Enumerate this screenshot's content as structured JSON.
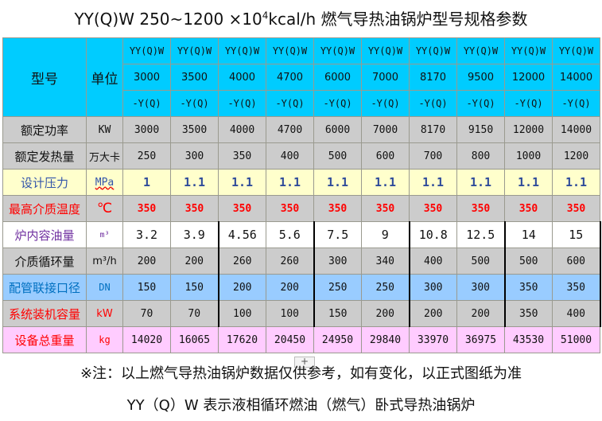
{
  "title": {
    "prefix": "YY(Q)W 250~1200  ×10",
    "sup": "4",
    "suffix": "kcal/h 燃气导热油锅炉型号规格参数"
  },
  "header": {
    "model_label": "型号",
    "unit_label": "单位",
    "line1": "YY(Q)W",
    "line3": "-Y(Q)",
    "models": [
      "3000",
      "3500",
      "4000",
      "4700",
      "6000",
      "7000",
      "8170",
      "9500",
      "12000",
      "14000"
    ]
  },
  "rows": [
    {
      "label": "额定功率",
      "unit": "KW",
      "values": [
        "3000",
        "3500",
        "4000",
        "4700",
        "6000",
        "7000",
        "8170",
        "9150",
        "12000",
        "14000"
      ]
    },
    {
      "label": "额定发热量",
      "unit": "万大卡",
      "values": [
        "250",
        "300",
        "350",
        "400",
        "500",
        "600",
        "700",
        "800",
        "1000",
        "1200"
      ]
    },
    {
      "label": "设计压力",
      "unit": "MPa",
      "values": [
        "1",
        "1.1",
        "1.1",
        "1.1",
        "1.1",
        "1.1",
        "1.1",
        "1.1",
        "1.1",
        "1.1"
      ]
    },
    {
      "label": "最高介质温度",
      "unit": "℃",
      "values": [
        "350",
        "350",
        "350",
        "350",
        "350",
        "350",
        "350",
        "350",
        "350",
        "350"
      ]
    },
    {
      "label": "炉内容油量",
      "unit": "m³",
      "values": [
        "3.2",
        "3.9",
        "4.56",
        "5.6",
        "7.5",
        "9",
        "10.8",
        "12.5",
        "14",
        "15"
      ]
    },
    {
      "label": "介质循环量",
      "unit": "m³/h",
      "values": [
        "200",
        "200",
        "260",
        "260",
        "300",
        "340",
        "400",
        "500",
        "500",
        "600"
      ]
    },
    {
      "label": "配管联接口径",
      "unit": "DN",
      "values": [
        "150",
        "150",
        "200",
        "200",
        "250",
        "250",
        "300",
        "300",
        "350",
        "350"
      ]
    },
    {
      "label": "系统装机容量",
      "unit": "kW",
      "values": [
        "70",
        "70",
        "100",
        "100",
        "150",
        "200",
        "200",
        "200",
        "350",
        "400"
      ]
    },
    {
      "label": "设备总重量",
      "unit": "kg",
      "values": [
        "14020",
        "16065",
        "17620",
        "20450",
        "24950",
        "29840",
        "33970",
        "36975",
        "43530",
        "51000"
      ]
    }
  ],
  "colors": {
    "header": "#00ccff",
    "gray": "#cccccc",
    "pressure": "#ffffcc",
    "pipe": "#99ccff",
    "weight": "#ffccff",
    "red": "#ff0000"
  },
  "footer": {
    "note": "※注：以上燃气导热油锅炉数据仅供参考，如有变化，以正式图纸为准",
    "desc": "YY（Q）W 表示液相循环燃油（燃气）卧式导热油锅炉",
    "plus": "+"
  }
}
